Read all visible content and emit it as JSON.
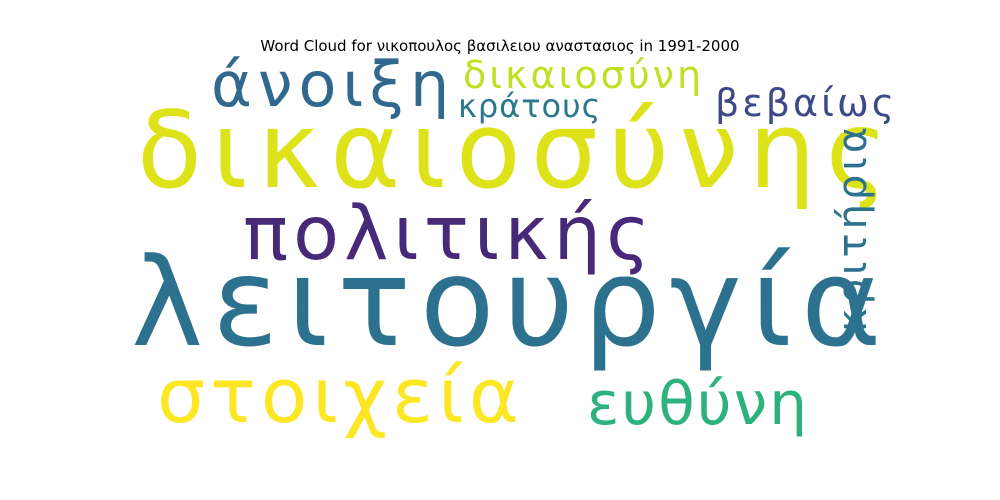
{
  "title": "Word Cloud for νικοπουλος βασιλειου αναστασιος in 1991-2000",
  "words": [
    {
      "text": "δικαιοσύνης",
      "color": "#dde318"
    },
    {
      "text": "λειτουργία",
      "color": "#2c728e"
    },
    {
      "text": "πολιτικής",
      "color": "#482878"
    },
    {
      "text": "στοιχεία",
      "color": "#fde725"
    },
    {
      "text": "άνοιξη",
      "color": "#31688e"
    },
    {
      "text": "δικαιοσύνη",
      "color": "#c2df23"
    },
    {
      "text": "κράτους",
      "color": "#2a788e"
    },
    {
      "text": "βεβαίως",
      "color": "#3e4989"
    },
    {
      "text": "ευθύνη",
      "color": "#2db27d"
    },
    {
      "text": "κριτήρια",
      "color": "#2c728e"
    }
  ]
}
